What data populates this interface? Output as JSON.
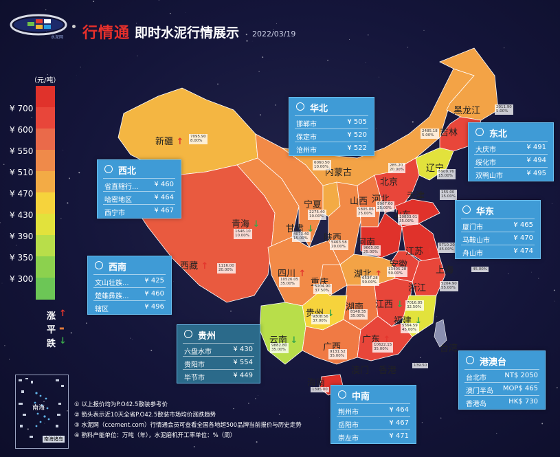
{
  "header": {
    "logo_text": "水泥网",
    "brand": "行情通",
    "title": "即时水泥行情展示",
    "date": "2022/03/19"
  },
  "legend": {
    "unit": "（元/吨）",
    "ticks": [
      "¥ 700",
      "¥ 600",
      "¥ 550",
      "¥ 510",
      "¥ 470",
      "¥ 430",
      "¥ 390",
      "¥ 350",
      "¥ 300"
    ],
    "colors": [
      "#e0322b",
      "#e8463a",
      "#ea6a4a",
      "#ef8a4a",
      "#f3ab45",
      "#f6d33c",
      "#e2e23c",
      "#b8de4a",
      "#8cd14e",
      "#6cc656"
    ],
    "trend": [
      {
        "label": "涨",
        "symbol": "↑",
        "color": "#e3362d"
      },
      {
        "label": "平",
        "symbol": "▬",
        "color": "#e07a3a"
      },
      {
        "label": "跌",
        "symbol": "↓",
        "color": "#3aa84a"
      }
    ]
  },
  "provinces": [
    {
      "name": "新疆",
      "trend": "up",
      "stats": [
        "7095.90",
        "8.00%"
      ]
    },
    {
      "name": "西藏",
      "trend": "up",
      "stats": [
        "1116.00",
        "20.00%"
      ]
    },
    {
      "name": "青海",
      "trend": "down",
      "stats": [
        "1646.10",
        "10.00%"
      ]
    },
    {
      "name": "甘肃",
      "trend": "down",
      "stats": [
        "4073.40",
        "15.00%"
      ]
    },
    {
      "name": "宁夏",
      "trend": "",
      "stats": [
        "2275.40",
        "10.00%"
      ]
    },
    {
      "name": "内蒙古",
      "trend": "",
      "stats": [
        "6060.50",
        "10.00%"
      ]
    },
    {
      "name": "黑龙江",
      "trend": "",
      "stats": [
        "2011.90",
        "5.00%"
      ]
    },
    {
      "name": "吉林",
      "trend": "",
      "stats": [
        "2485.18",
        "5.00%"
      ]
    },
    {
      "name": "辽宁",
      "trend": "",
      "stats": [
        "5909.76",
        "15.00%"
      ]
    },
    {
      "name": "北京",
      "trend": "",
      "stats": [
        "285.20",
        "20.00%"
      ]
    },
    {
      "name": "天津",
      "trend": "",
      "stats": [
        "155.00",
        "15.00%"
      ]
    },
    {
      "name": "河北",
      "trend": "",
      "stats": [
        "8907.60",
        "25.00%"
      ]
    },
    {
      "name": "山西",
      "trend": "",
      "stats": [
        "5805.06",
        "25.00%"
      ]
    },
    {
      "name": "山东",
      "trend": "",
      "stats": [
        "10833.01",
        "35.00%"
      ]
    },
    {
      "name": "陕西",
      "trend": "",
      "stats": [
        "5463.58",
        "20.00%"
      ]
    },
    {
      "name": "河南",
      "trend": "",
      "stats": [
        "9665.80",
        "25.00%"
      ]
    },
    {
      "name": "江苏",
      "trend": "up",
      "stats": [
        "5710.20",
        "45.00%"
      ]
    },
    {
      "name": "上海",
      "trend": "",
      "stats": [
        "",
        "45.00%"
      ]
    },
    {
      "name": "安徽",
      "trend": "",
      "stats": [
        "13405.28",
        "50.00%"
      ]
    },
    {
      "name": "四川",
      "trend": "up",
      "stats": [
        "10526.05",
        "35.00%"
      ]
    },
    {
      "name": "重庆",
      "trend": "",
      "stats": [
        "5204.90",
        "37.50%"
      ]
    },
    {
      "name": "湖北",
      "trend": "up",
      "stats": [
        "6537.28",
        "50.00%"
      ]
    },
    {
      "name": "浙江",
      "trend": "",
      "stats": [
        "5204.90",
        "55.00%"
      ]
    },
    {
      "name": "湖南",
      "trend": "",
      "stats": [
        "8148.35",
        "35.00%"
      ]
    },
    {
      "name": "江西",
      "trend": "down",
      "stats": [
        "7016.85",
        "32.50%"
      ]
    },
    {
      "name": "贵州",
      "trend": "down",
      "stats": [
        "9308.56",
        "37.00%"
      ]
    },
    {
      "name": "福建",
      "trend": "down",
      "stats": [
        "5564.59",
        "45.00%"
      ]
    },
    {
      "name": "云南",
      "trend": "down",
      "stats": [
        "9882.80",
        "35.00%"
      ]
    },
    {
      "name": "广西",
      "trend": "",
      "stats": [
        "9131.52",
        "35.00%"
      ]
    },
    {
      "name": "广东",
      "trend": "up",
      "stats": [
        "10622.15",
        "35.00%"
      ]
    },
    {
      "name": "台湾",
      "trend": "",
      "stats": []
    },
    {
      "name": "香港",
      "trend": "",
      "stats": [
        "139.50"
      ]
    },
    {
      "name": "澳门",
      "trend": "",
      "stats": []
    },
    {
      "name": "海南",
      "trend": "",
      "stats": [
        "1395.00"
      ]
    }
  ],
  "regions": {
    "huabei": {
      "title": "华北",
      "rows": [
        [
          "邯郸市",
          "¥ 505"
        ],
        [
          "保定市",
          "¥ 520"
        ],
        [
          "沧州市",
          "¥ 522"
        ]
      ]
    },
    "xibei": {
      "title": "西北",
      "rows": [
        [
          "省直辖行...",
          "¥ 460"
        ],
        [
          "哈密地区",
          "¥ 464"
        ],
        [
          "西宁市",
          "¥ 467"
        ]
      ]
    },
    "dongbei": {
      "title": "东北",
      "rows": [
        [
          "大庆市",
          "¥ 491"
        ],
        [
          "绥化市",
          "¥ 494"
        ],
        [
          "双鸭山市",
          "¥ 495"
        ]
      ]
    },
    "huadong": {
      "title": "华东",
      "rows": [
        [
          "厦门市",
          "¥ 465"
        ],
        [
          "马鞍山市",
          "¥ 470"
        ],
        [
          "舟山市",
          "¥ 474"
        ]
      ]
    },
    "xinan": {
      "title": "西南",
      "rows": [
        [
          "文山壮族...",
          "¥ 425"
        ],
        [
          "楚雄彝族...",
          "¥ 460"
        ],
        [
          "辖区",
          "¥ 496"
        ]
      ]
    },
    "guizhou": {
      "title": "贵州",
      "rows": [
        [
          "六盘水市",
          "¥ 430"
        ],
        [
          "贵阳市",
          "¥ 554"
        ],
        [
          "毕节市",
          "¥ 449"
        ]
      ]
    },
    "gangaotai": {
      "title": "港澳台",
      "rows": [
        [
          "台北市",
          "NT$ 2050"
        ],
        [
          "澳门半岛",
          "MOP$ 465"
        ],
        [
          "香港岛",
          "HK$ 730"
        ]
      ]
    },
    "zhongnan": {
      "title": "中南",
      "rows": [
        [
          "荆州市",
          "¥ 464"
        ],
        [
          "岳阳市",
          "¥ 467"
        ],
        [
          "崇左市",
          "¥ 471"
        ]
      ]
    }
  },
  "inset": {
    "caption": "南海诸岛",
    "label": "南海"
  },
  "notes": [
    "① 以上报价均为P.O42.5散装参考价",
    "② 箭头表示近10天全省P.O42.5散装市场均价涨跌趋势",
    "③ 水泥网（ccement.com）行情通会员可查看全国各地超500品牌当前报价与历史走势",
    "④ 熟料产能单位：万吨（年），水泥磨机开工率单位：%（周）"
  ]
}
